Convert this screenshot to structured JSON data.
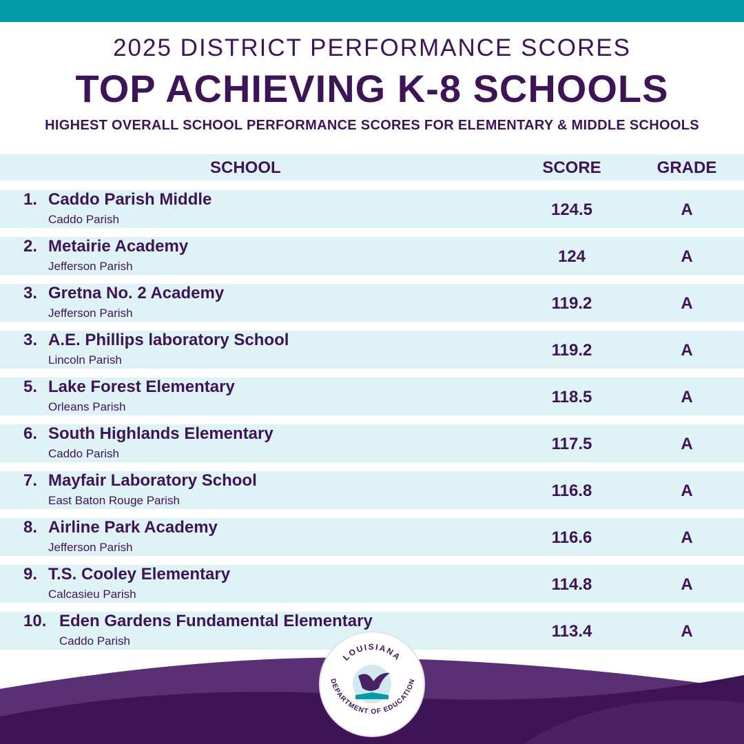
{
  "header": {
    "line1": "2025 DISTRICT PERFORMANCE SCORES",
    "title": "TOP ACHIEVING K-8 SCHOOLS",
    "subtitle": "HIGHEST OVERALL SCHOOL PERFORMANCE SCORES FOR ELEMENTARY & MIDDLE SCHOOLS"
  },
  "table": {
    "columns": [
      "SCHOOL",
      "SCORE",
      "GRADE"
    ],
    "rows": [
      {
        "rank": "1.",
        "school": "Caddo Parish Middle",
        "parish": "Caddo Parish",
        "score": 124.5,
        "grade": "A"
      },
      {
        "rank": "2.",
        "school": "Metairie Academy",
        "parish": "Jefferson Parish",
        "score": 124,
        "grade": "A"
      },
      {
        "rank": "3.",
        "school": "Gretna No. 2 Academy",
        "parish": "Jefferson Parish",
        "score": 119.2,
        "grade": "A"
      },
      {
        "rank": "3.",
        "school": "A.E. Phillips laboratory School",
        "parish": "Lincoln Parish",
        "score": 119.2,
        "grade": "A"
      },
      {
        "rank": "5.",
        "school": "Lake Forest Elementary",
        "parish": "Orleans Parish",
        "score": 118.5,
        "grade": "A"
      },
      {
        "rank": "6.",
        "school": "South Highlands Elementary",
        "parish": "Caddo Parish",
        "score": 117.5,
        "grade": "A"
      },
      {
        "rank": "7.",
        "school": "Mayfair Laboratory School",
        "parish": "East Baton Rouge Parish",
        "score": 116.8,
        "grade": "A"
      },
      {
        "rank": "8.",
        "school": "Airline Park Academy",
        "parish": "Jefferson Parish",
        "score": 116.6,
        "grade": "A"
      },
      {
        "rank": "9.",
        "school": "T.S. Cooley Elementary",
        "parish": "Calcasieu Parish",
        "score": 114.8,
        "grade": "A"
      },
      {
        "rank": "10.",
        "school": "Eden Gardens Fundamental Elementary",
        "parish": "Caddo Parish",
        "score": 113.4,
        "grade": "A"
      }
    ]
  },
  "logo": {
    "top": "LOUISIANA",
    "bottom": "DEPARTMENT OF EDUCATION"
  }
}
